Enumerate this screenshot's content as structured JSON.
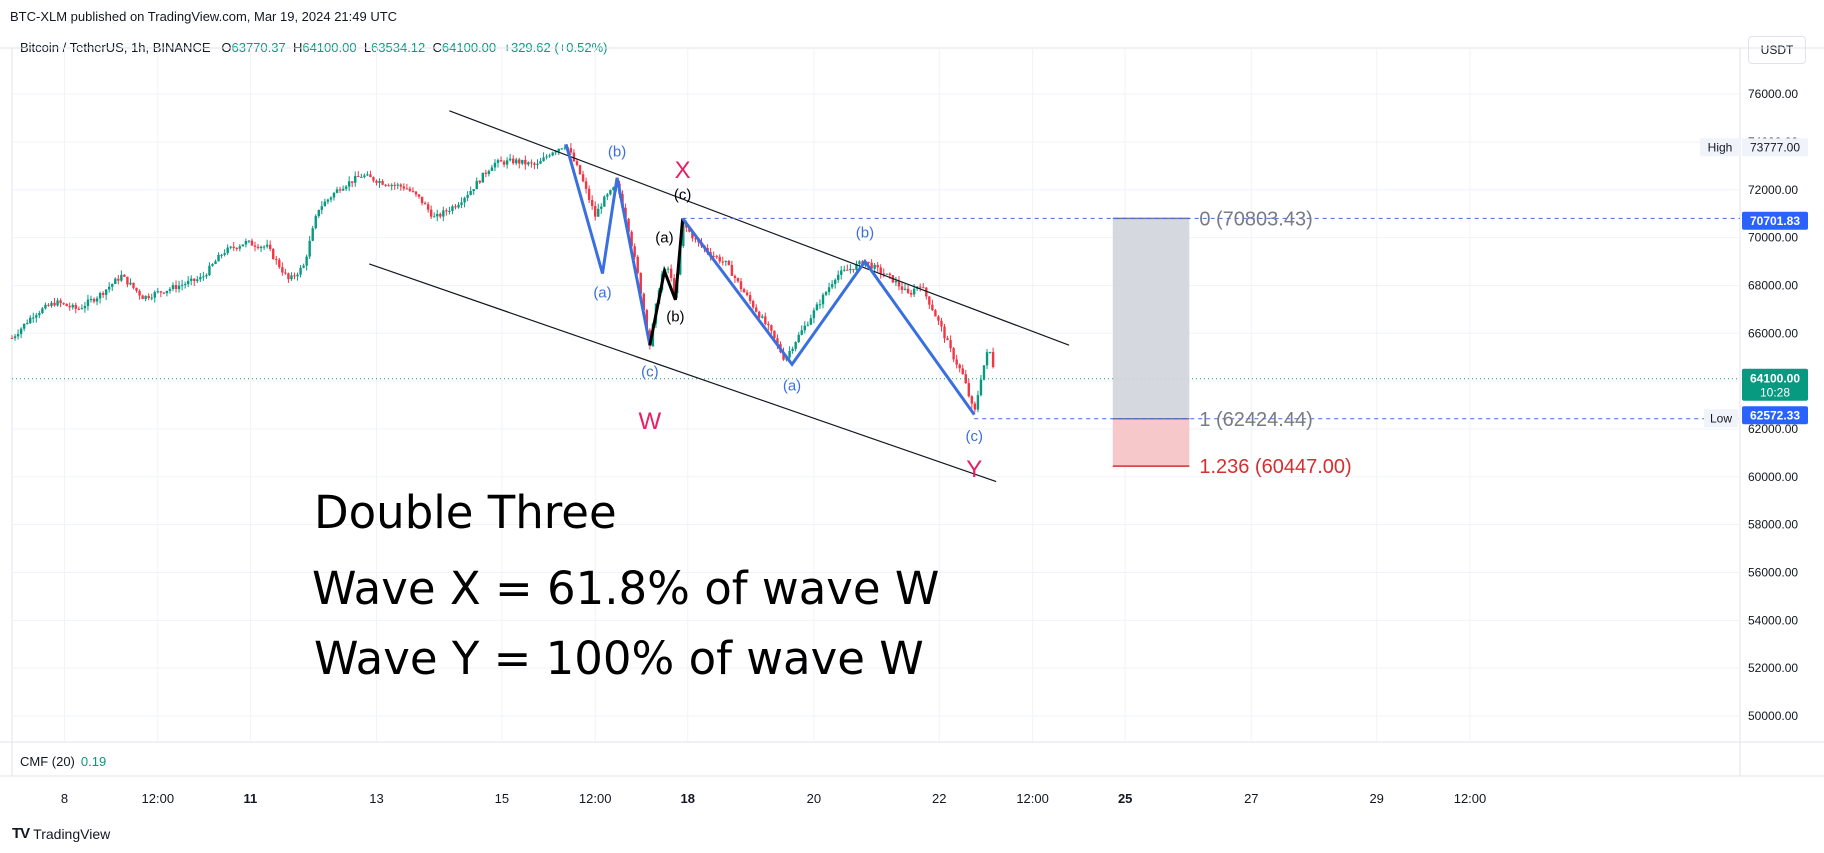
{
  "publish_line": "BTC-XLM published on TradingView.com, Mar 19, 2024 21:49 UTC",
  "legend": {
    "symbol": "Bitcoin / TetherUS, 1h, BINANCE",
    "o_label": "O",
    "o": "63770.37",
    "h_label": "H",
    "h": "64100.00",
    "l_label": "L",
    "l": "63534.12",
    "c_label": "C",
    "c": "64100.00",
    "change": "+329.62 (+0.52%)"
  },
  "currency_button": "USDT",
  "cmf": {
    "label": "CMF (20)",
    "value": "0.19"
  },
  "branding": {
    "logo": "TV",
    "name": "TradingView"
  },
  "colors": {
    "up": "#089981",
    "down": "#f23645",
    "wave": "#3a6fe0",
    "label_red": "#e91e63",
    "channel": "#131722",
    "fib_grey": "#787b86",
    "fib_red": "#d32f2f"
  },
  "annotation_text": {
    "title": "Double Three",
    "line1": "Wave X = 61.8% of wave W",
    "line2": "Wave Y = 100% of wave W"
  },
  "chart_data": {
    "type": "candlestick",
    "symbol": "BTCUSDT",
    "interval": "1h",
    "y_axis": {
      "ticks": [
        50000,
        52000,
        54000,
        56000,
        58000,
        60000,
        62000,
        64000,
        66000,
        68000,
        70000,
        72000,
        74000,
        76000
      ],
      "tick_labels": [
        "50000.00",
        "52000.00",
        "54000.00",
        "56000.00",
        "58000.00",
        "60000.00",
        "62000.00",
        "64000.00",
        "66000.00",
        "68000.00",
        "70000.00",
        "72000.00",
        "74000.00",
        "76000.00"
      ]
    },
    "x_axis": {
      "ticks": [
        {
          "label": "8",
          "bold": false
        },
        {
          "label": "12:00",
          "bold": false
        },
        {
          "label": "11",
          "bold": true
        },
        {
          "label": "13",
          "bold": false
        },
        {
          "label": "15",
          "bold": false
        },
        {
          "label": "12:00",
          "bold": false
        },
        {
          "label": "18",
          "bold": true
        },
        {
          "label": "20",
          "bold": false
        },
        {
          "label": "22",
          "bold": false
        },
        {
          "label": "12:00",
          "bold": false
        },
        {
          "label": "25",
          "bold": true
        },
        {
          "label": "27",
          "bold": false
        },
        {
          "label": "29",
          "bold": false
        },
        {
          "label": "12:00",
          "bold": false
        }
      ]
    },
    "price_path": [
      [
        0.0,
        65800
      ],
      [
        0.3,
        66800
      ],
      [
        0.6,
        67300
      ],
      [
        0.9,
        67000
      ],
      [
        1.2,
        67600
      ],
      [
        1.5,
        68400
      ],
      [
        1.8,
        67500
      ],
      [
        2.2,
        67900
      ],
      [
        2.6,
        68300
      ],
      [
        2.9,
        69400
      ],
      [
        3.2,
        69800
      ],
      [
        3.5,
        69600
      ],
      [
        3.8,
        68200
      ],
      [
        4.0,
        68800
      ],
      [
        4.2,
        71200
      ],
      [
        4.5,
        72100
      ],
      [
        4.8,
        72600
      ],
      [
        5.1,
        72300
      ],
      [
        5.4,
        72100
      ],
      [
        5.6,
        71600
      ],
      [
        5.8,
        70800
      ],
      [
        6.1,
        71400
      ],
      [
        6.3,
        72000
      ],
      [
        6.6,
        73100
      ],
      [
        6.9,
        73200
      ],
      [
        7.2,
        73000
      ],
      [
        7.4,
        73600
      ],
      [
        7.6,
        73900
      ],
      [
        7.8,
        72600
      ],
      [
        8.0,
        70900
      ],
      [
        8.1,
        71500
      ],
      [
        8.3,
        72200
      ],
      [
        8.45,
        70500
      ],
      [
        8.6,
        68200
      ],
      [
        8.75,
        65500
      ],
      [
        8.9,
        68400
      ],
      [
        9.0,
        68700
      ],
      [
        9.1,
        67600
      ],
      [
        9.2,
        70600
      ],
      [
        9.4,
        69800
      ],
      [
        9.6,
        69300
      ],
      [
        9.8,
        68900
      ],
      [
        10.0,
        67900
      ],
      [
        10.2,
        67000
      ],
      [
        10.4,
        66100
      ],
      [
        10.6,
        64900
      ],
      [
        10.75,
        65700
      ],
      [
        10.9,
        66400
      ],
      [
        11.1,
        67400
      ],
      [
        11.3,
        68400
      ],
      [
        11.5,
        68700
      ],
      [
        11.7,
        69000
      ],
      [
        11.9,
        68600
      ],
      [
        12.1,
        68200
      ],
      [
        12.3,
        67600
      ],
      [
        12.45,
        68100
      ],
      [
        12.6,
        67200
      ],
      [
        12.75,
        66200
      ],
      [
        12.9,
        65100
      ],
      [
        13.05,
        64200
      ],
      [
        13.2,
        62600
      ],
      [
        13.3,
        64300
      ],
      [
        13.4,
        65400
      ],
      [
        13.48,
        64400
      ]
    ],
    "current_price": 64100.0,
    "current_price_label": "64100.00",
    "countdown": "10:28",
    "high": {
      "label": "High",
      "value": 73777.0,
      "value_label": "73777.00"
    },
    "low": {
      "label": "Low",
      "value": 62572.33,
      "value_label": "62572.33"
    },
    "extra_price_label": {
      "value": 70701.83,
      "label": "70701.83"
    },
    "fib_levels": [
      {
        "ratio": "0",
        "value": 70803.43,
        "label": "0 (70803.43)"
      },
      {
        "ratio": "1",
        "value": 62424.44,
        "label": "1 (62424.44)"
      },
      {
        "ratio": "1.236",
        "value": 60447.0,
        "label": "1.236 (60447.00)"
      }
    ],
    "channel": {
      "upper": [
        [
          6.0,
          75300
        ],
        [
          14.5,
          65500
        ]
      ],
      "lower": [
        [
          4.9,
          68900
        ],
        [
          13.5,
          59800
        ]
      ]
    },
    "wave_lines": [
      {
        "color": "blue",
        "points": [
          [
            7.6,
            73900
          ],
          [
            8.1,
            68500
          ],
          [
            8.3,
            72500
          ],
          [
            8.75,
            65500
          ]
        ]
      },
      {
        "color": "black",
        "points": [
          [
            8.75,
            65500
          ],
          [
            8.95,
            68600
          ],
          [
            9.1,
            67400
          ],
          [
            9.2,
            70800
          ]
        ]
      },
      {
        "color": "blue",
        "points": [
          [
            9.2,
            70800
          ],
          [
            10.7,
            64700
          ],
          [
            11.7,
            69000
          ],
          [
            13.2,
            62600
          ]
        ]
      }
    ],
    "wave_labels": [
      {
        "text": "(b)",
        "x": 8.3,
        "y": 73400,
        "color": "blue"
      },
      {
        "text": "(a)",
        "x": 8.1,
        "y": 67500,
        "color": "blue"
      },
      {
        "text": "(c)",
        "x": 8.75,
        "y": 64200,
        "color": "blue"
      },
      {
        "text": "W",
        "x": 8.75,
        "y": 62000,
        "color": "red"
      },
      {
        "text": "X",
        "x": 9.2,
        "y": 72500,
        "color": "red"
      },
      {
        "text": "(c)",
        "x": 9.2,
        "y": 71600,
        "color": "black"
      },
      {
        "text": "(a)",
        "x": 8.95,
        "y": 69800,
        "color": "black"
      },
      {
        "text": "(b)",
        "x": 9.1,
        "y": 66500,
        "color": "black"
      },
      {
        "text": "(a)",
        "x": 10.7,
        "y": 63600,
        "color": "blue"
      },
      {
        "text": "(b)",
        "x": 11.7,
        "y": 70000,
        "color": "blue"
      },
      {
        "text": "(c)",
        "x": 13.2,
        "y": 61500,
        "color": "blue"
      },
      {
        "text": "Y",
        "x": 13.2,
        "y": 60000,
        "color": "red"
      }
    ],
    "cmf_value": 0.19,
    "legend": "none",
    "grid": true
  }
}
